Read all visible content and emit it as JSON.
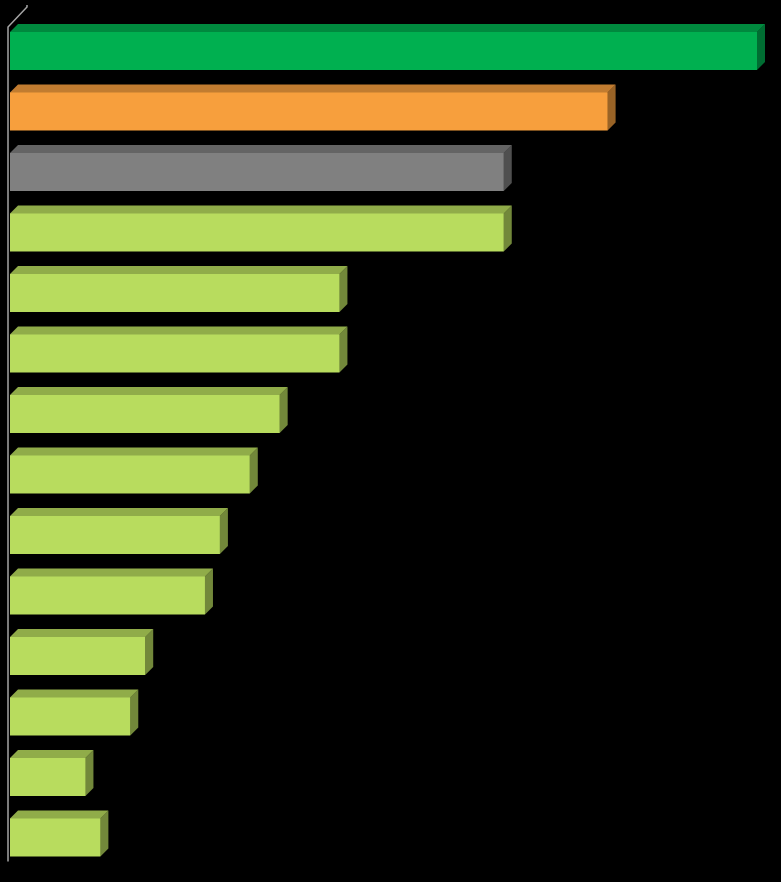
{
  "chart_data": {
    "type": "bar",
    "orientation": "horizontal",
    "style": "3d",
    "title": "",
    "xlabel": "",
    "ylabel": "",
    "grid": false,
    "legend": "none",
    "xlim": [
      0,
      100
    ],
    "values": [
      100,
      80,
      66.1,
      66.1,
      44.1,
      44.1,
      36.1,
      32.1,
      28.1,
      26.1,
      18.1,
      16.1,
      10.1,
      12.1
    ],
    "colors": [
      "#00B050",
      "#F79F3D",
      "#808080",
      "#B8DC5E",
      "#B8DC5E",
      "#B8DC5E",
      "#B8DC5E",
      "#B8DC5E",
      "#B8DC5E",
      "#B8DC5E",
      "#B8DC5E",
      "#B8DC5E",
      "#B8DC5E",
      "#B8DC5E"
    ],
    "background": "#000000",
    "axis_color": "#A6A6A6"
  }
}
